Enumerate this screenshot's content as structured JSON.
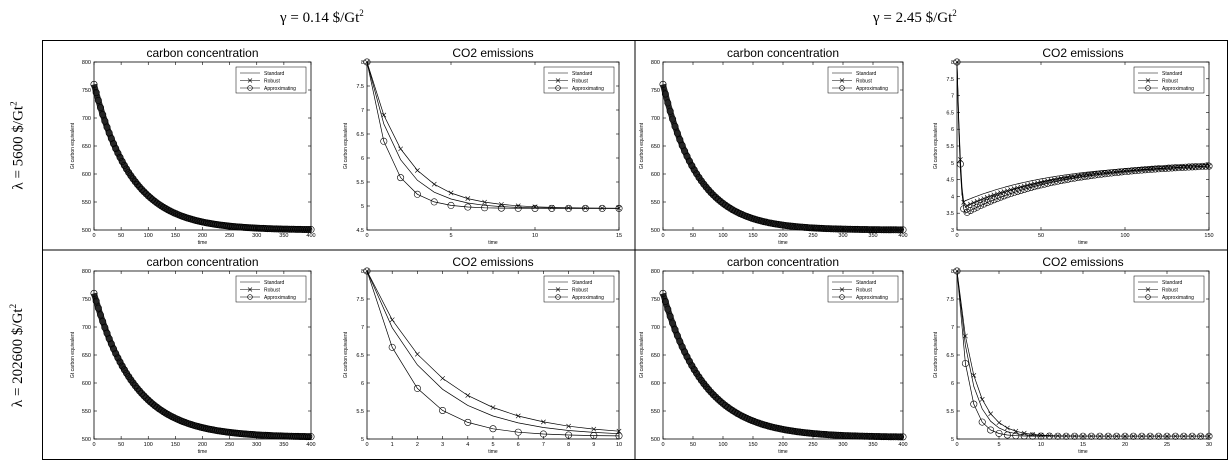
{
  "header": {
    "col1": {
      "prefix": "γ = 0.14 $/Gt",
      "sup": "2"
    },
    "col2": {
      "prefix": "γ = 2.45 $/Gt",
      "sup": "2"
    }
  },
  "rows": [
    {
      "prefix": "λ = 5600 $/Gt",
      "sup": "2"
    },
    {
      "prefix": "λ = 202600 $/Gt",
      "sup": "2"
    }
  ],
  "legend": [
    "Standard",
    "Robust",
    "Approximating"
  ],
  "chart_data": [
    {
      "id": "r1c1a",
      "type": "line",
      "title": "carbon concentration",
      "xlabel": "time",
      "ylabel": "Gt carbon equivalent",
      "xlim": [
        0,
        400
      ],
      "ylim": [
        500,
        800
      ],
      "xticks": [
        0,
        50,
        100,
        150,
        200,
        250,
        300,
        350,
        400
      ],
      "yticks": [
        500,
        550,
        600,
        650,
        700,
        750,
        800
      ],
      "curve": {
        "kind": "decay",
        "y0": 760,
        "yinf": 500,
        "k": 0.0145,
        "n": 400
      },
      "series": [
        {
          "name": "Standard"
        },
        {
          "name": "Robust"
        },
        {
          "name": "Approximating"
        }
      ]
    },
    {
      "id": "r1c1b",
      "type": "line",
      "title": "CO2 emissions",
      "xlabel": "time",
      "ylabel": "Gt carbon equivalent",
      "xlim": [
        0,
        15
      ],
      "ylim": [
        4.5,
        8
      ],
      "xticks": [
        0,
        5,
        10,
        15
      ],
      "yticks": [
        4.5,
        5,
        5.5,
        6,
        6.5,
        7,
        7.5,
        8
      ],
      "series": [
        {
          "name": "Standard",
          "y0": 8,
          "yinf": 4.95,
          "k": 0.55,
          "n": 15
        },
        {
          "name": "Robust",
          "y0": 8,
          "yinf": 4.95,
          "k": 0.45,
          "n": 15
        },
        {
          "name": "Approximating",
          "y0": 8,
          "yinf": 4.95,
          "k": 0.78,
          "n": 15
        }
      ]
    },
    {
      "id": "r1c2a",
      "type": "line",
      "title": "carbon concentration",
      "xlabel": "time",
      "ylabel": "Gt carbon equivalent",
      "xlim": [
        0,
        400
      ],
      "ylim": [
        500,
        800
      ],
      "xticks": [
        0,
        50,
        100,
        150,
        200,
        250,
        300,
        350,
        400
      ],
      "yticks": [
        500,
        550,
        600,
        650,
        700,
        750,
        800
      ],
      "curve": {
        "kind": "decay",
        "y0": 760,
        "yinf": 500,
        "k": 0.017,
        "n": 400
      },
      "series": [
        {
          "name": "Standard"
        },
        {
          "name": "Robust"
        },
        {
          "name": "Approximating"
        }
      ]
    },
    {
      "id": "r1c2b",
      "type": "line",
      "title": "CO2 emissions",
      "xlabel": "time",
      "ylabel": "Gt carbon equivalent",
      "xlim": [
        0,
        150
      ],
      "ylim": [
        3,
        8
      ],
      "xticks": [
        0,
        50,
        100,
        150
      ],
      "yticks": [
        3,
        3.5,
        4,
        4.5,
        5,
        5.5,
        6,
        6.5,
        7,
        7.5,
        8
      ],
      "series": [
        {
          "name": "Standard",
          "kind": "dip",
          "y0": 8,
          "ymin": 3.85,
          "tmin": 4,
          "yend": 4.95,
          "n": 150
        },
        {
          "name": "Robust",
          "kind": "dip",
          "y0": 8,
          "ymin": 3.7,
          "tmin": 5,
          "yend": 4.9,
          "n": 150
        },
        {
          "name": "Approximating",
          "kind": "dip",
          "y0": 8,
          "ymin": 3.5,
          "tmin": 5,
          "yend": 4.9,
          "n": 150
        }
      ]
    },
    {
      "id": "r2c1a",
      "type": "line",
      "title": "carbon concentration",
      "xlabel": "time",
      "ylabel": "Gt carbon equivalent",
      "xlim": [
        0,
        400
      ],
      "ylim": [
        500,
        800
      ],
      "xticks": [
        0,
        50,
        100,
        150,
        200,
        250,
        300,
        350,
        400
      ],
      "yticks": [
        500,
        550,
        600,
        650,
        700,
        750,
        800
      ],
      "curve": {
        "kind": "decay",
        "y0": 760,
        "yinf": 503,
        "k": 0.0135,
        "n": 400
      },
      "series": [
        {
          "name": "Standard"
        },
        {
          "name": "Robust"
        },
        {
          "name": "Approximating"
        }
      ]
    },
    {
      "id": "r2c1b",
      "type": "line",
      "title": "CO2 emissions",
      "xlabel": "time",
      "ylabel": "Gt carbon equivalent",
      "xlim": [
        0,
        10
      ],
      "ylim": [
        5,
        8
      ],
      "xticks": [
        0,
        1,
        2,
        3,
        4,
        5,
        6,
        7,
        8,
        9,
        10
      ],
      "yticks": [
        5,
        5.5,
        6,
        6.5,
        7,
        7.5,
        8
      ],
      "series": [
        {
          "name": "Standard",
          "y0": 8,
          "yinf": 5.05,
          "k": 0.42,
          "n": 10
        },
        {
          "name": "Robust",
          "y0": 8,
          "yinf": 5.05,
          "k": 0.35,
          "n": 10
        },
        {
          "name": "Approximating",
          "y0": 8,
          "yinf": 5.05,
          "k": 0.62,
          "n": 10
        }
      ]
    },
    {
      "id": "r2c2a",
      "type": "line",
      "title": "carbon concentration",
      "xlabel": "time",
      "ylabel": "Gt carbon equivalent",
      "xlim": [
        0,
        400
      ],
      "ylim": [
        500,
        800
      ],
      "xticks": [
        0,
        50,
        100,
        150,
        200,
        250,
        300,
        350,
        400
      ],
      "yticks": [
        500,
        550,
        600,
        650,
        700,
        750,
        800
      ],
      "curve": {
        "kind": "decay",
        "y0": 760,
        "yinf": 503,
        "k": 0.0145,
        "n": 400
      },
      "series": [
        {
          "name": "Standard"
        },
        {
          "name": "Robust"
        },
        {
          "name": "Approximating"
        }
      ]
    },
    {
      "id": "r2c2b",
      "type": "line",
      "title": "CO2 emissions",
      "xlabel": "time",
      "ylabel": "Gt carbon equivalent",
      "xlim": [
        0,
        30
      ],
      "ylim": [
        5,
        8
      ],
      "xticks": [
        0,
        5,
        10,
        15,
        20,
        25,
        30
      ],
      "yticks": [
        5,
        5.5,
        6,
        6.5,
        7,
        7.5,
        8
      ],
      "series": [
        {
          "name": "Standard",
          "y0": 8,
          "yinf": 5.05,
          "k": 0.6,
          "n": 30
        },
        {
          "name": "Robust",
          "y0": 8,
          "yinf": 5.05,
          "k": 0.5,
          "n": 30
        },
        {
          "name": "Approximating",
          "y0": 8,
          "yinf": 5.05,
          "k": 0.82,
          "n": 30
        }
      ]
    }
  ]
}
